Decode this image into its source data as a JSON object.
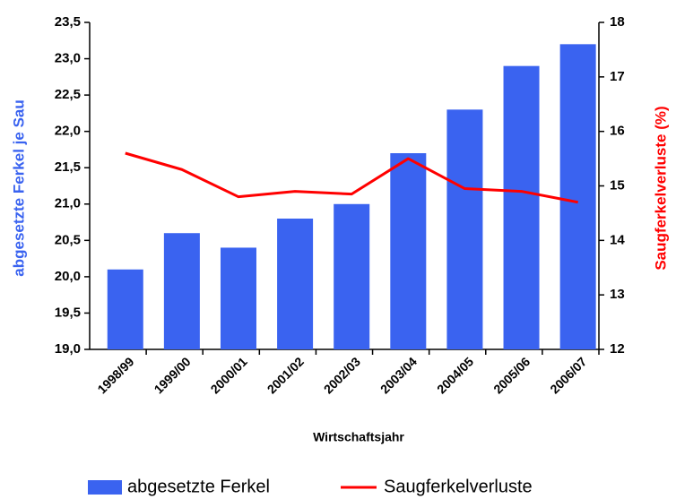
{
  "chart_data": {
    "type": "bar_line",
    "categories": [
      "1998/99",
      "1999/00",
      "2000/01",
      "2001/02",
      "2002/03",
      "2003/04",
      "2004/05",
      "2005/06",
      "2006/07"
    ],
    "series": [
      {
        "name": "abgesetzte Ferkel",
        "color": "#3a63f0",
        "type": "bar",
        "axis": "y",
        "values": [
          20.1,
          20.6,
          20.4,
          20.8,
          21.0,
          21.7,
          22.3,
          22.9,
          23.2
        ]
      },
      {
        "name": "Saugferkelverluste",
        "color": "#ff0000",
        "type": "line",
        "axis": "y2",
        "values": [
          15.6,
          15.3,
          14.8,
          14.9,
          14.85,
          15.5,
          14.95,
          14.9,
          14.7
        ]
      }
    ],
    "xlabel": "Wirtschaftsjahr",
    "ylabel": "abgesetzte Ferkel je Sau",
    "y2label": "Saugferkelverluste (%)",
    "ylim": [
      19.0,
      23.5
    ],
    "yticks": [
      {
        "value": 19.0,
        "label": "19,0"
      },
      {
        "value": 19.5,
        "label": "19,5"
      },
      {
        "value": 20.0,
        "label": "20,0"
      },
      {
        "value": 20.5,
        "label": "20,5"
      },
      {
        "value": 21.0,
        "label": "21,0"
      },
      {
        "value": 21.5,
        "label": "21,5"
      },
      {
        "value": 22.0,
        "label": "22,0"
      },
      {
        "value": 22.5,
        "label": "22,5"
      },
      {
        "value": 23.0,
        "label": "23,0"
      },
      {
        "value": 23.5,
        "label": "23,5"
      }
    ],
    "y2lim": [
      12,
      18
    ],
    "y2ticks": [
      12,
      13,
      14,
      15,
      16,
      17,
      18
    ],
    "ylabel_color": "#3a63f0",
    "y2label_color": "#ff0000",
    "legend": "bottom"
  }
}
